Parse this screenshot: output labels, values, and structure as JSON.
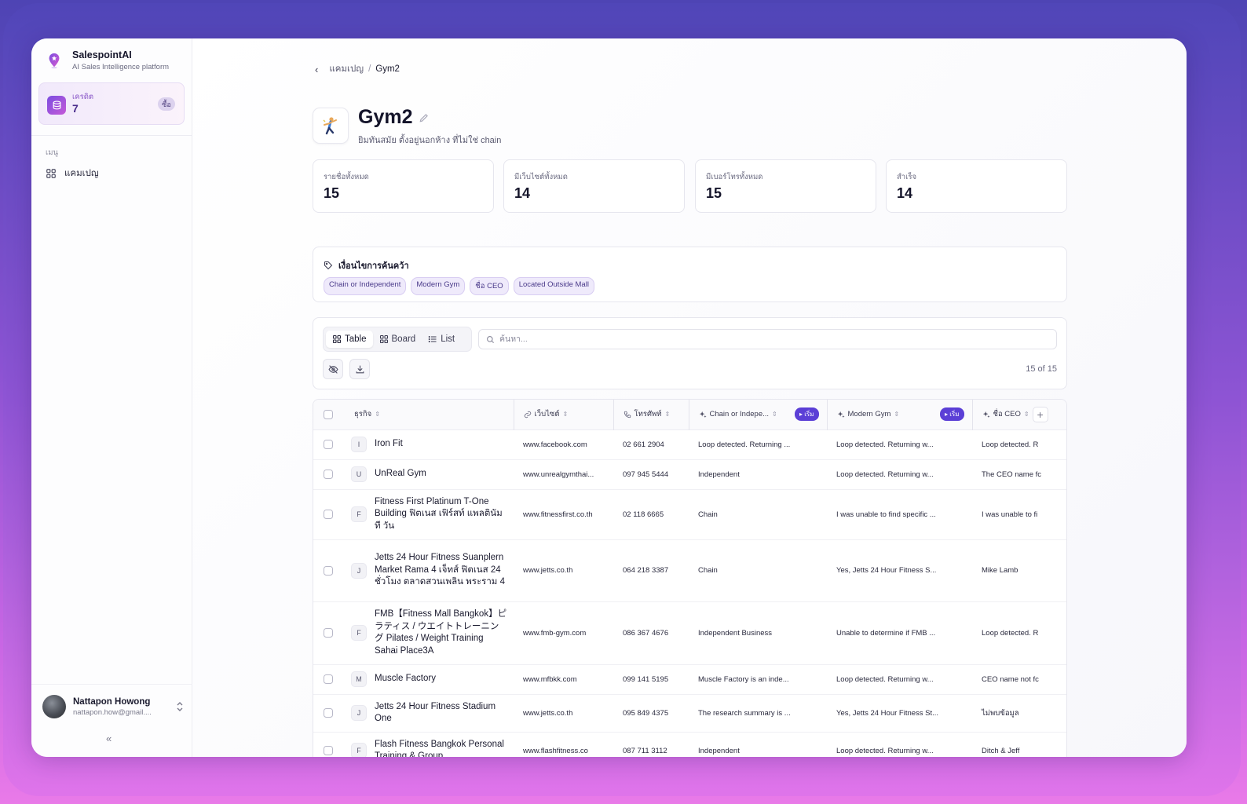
{
  "sidebar": {
    "brand_name": "SalespointAI",
    "brand_subtitle": "AI Sales Intelligence platform",
    "credit_label": "เครดิต",
    "credit_value": "7",
    "buy_label": "ซื้อ",
    "menu_label": "เมนู",
    "menu_items": [
      {
        "label": "แคมเปญ",
        "icon": "grid-icon"
      }
    ],
    "user_name": "Nattapon Howong",
    "user_email": "nattapon.how@gmail....",
    "collapse_label": "«"
  },
  "breadcrumb": {
    "parent": "แคมเปญ",
    "separator": "/",
    "current": "Gym2"
  },
  "campaign": {
    "icon": "gymnast-icon",
    "title": "Gym2",
    "description": "ยิมทันสมัย ตั้งอยู่นอกห้าง ที่ไม่ใช่ chain"
  },
  "stats": [
    {
      "label": "รายชื่อทั้งหมด",
      "value": "15"
    },
    {
      "label": "มีเว็บไซต์ทั้งหมด",
      "value": "14"
    },
    {
      "label": "มีเบอร์โทรทั้งหมด",
      "value": "15"
    },
    {
      "label": "สำเร็จ",
      "value": "14"
    }
  ],
  "criteria": {
    "title": "เงื่อนไขการค้นคว้า",
    "chips": [
      "Chain or Independent",
      "Modern Gym",
      "ชื่อ CEO",
      "Located Outside Mall"
    ]
  },
  "toolbar": {
    "views": [
      {
        "label": "Table",
        "active": true
      },
      {
        "label": "Board",
        "active": false
      },
      {
        "label": "List",
        "active": false
      }
    ],
    "search_placeholder": "ค้นหา...",
    "search_value": "",
    "count": "15 of 15"
  },
  "table": {
    "columns": [
      {
        "label": "ธุรกิจ",
        "icon": ""
      },
      {
        "label": "เว็บไซต์",
        "icon": "link-icon"
      },
      {
        "label": "โทรศัพท์",
        "icon": "phone-icon"
      },
      {
        "label": "Chain or Indepe...",
        "icon": "sparkle-icon",
        "run_label": "▸ เริ่ม"
      },
      {
        "label": "Modern Gym",
        "icon": "sparkle-icon",
        "run_label": "▸ เริ่ม"
      },
      {
        "label": "ชื่อ CEO",
        "icon": "sparkle-icon"
      }
    ],
    "rows": [
      {
        "letter": "I",
        "name": "Iron Fit",
        "website": "www.facebook.com",
        "phone": "02 661 2904",
        "chain": "Loop detected. Returning ...",
        "modern": "Loop detected. Returning w...",
        "ceo": "Loop detected. R"
      },
      {
        "letter": "U",
        "name": "UnReal Gym",
        "website": "www.unrealgymthai...",
        "phone": "097 945 5444",
        "chain": "Independent",
        "modern": "Loop detected. Returning w...",
        "ceo": "The CEO name fc"
      },
      {
        "letter": "F",
        "name": "Fitness First Platinum T-One Building ฟิตเนส เฟิร์สท์ แพลตินัม ที วัน",
        "website": "www.fitnessfirst.co.th",
        "phone": "02 118 6665",
        "chain": "Chain",
        "modern": "I was unable to find specific ...",
        "ceo": "I was unable to fi"
      },
      {
        "letter": "J",
        "name": "Jetts 24 Hour Fitness Suanplern Market Rama 4 เจ็ทส์ ฟิตเนส 24 ชั่วโมง ตลาดสวนเพลิน พระราม 4",
        "website": "www.jetts.co.th",
        "phone": "064 218 3387",
        "chain": "Chain",
        "modern": "Yes, Jetts 24 Hour Fitness S...",
        "ceo": "Mike Lamb"
      },
      {
        "letter": "F",
        "name": "FMB【Fitness Mall Bangkok】ピラティス / ウエイトトレーニング Pilates / Weight Training Sahai Place3A",
        "website": "www.fmb-gym.com",
        "phone": "086 367 4676",
        "chain": "Independent Business",
        "modern": "Unable to determine if FMB ...",
        "ceo": "Loop detected. R"
      },
      {
        "letter": "M",
        "name": "Muscle Factory",
        "website": "www.mfbkk.com",
        "phone": "099 141 5195",
        "chain": "Muscle Factory is an inde...",
        "modern": "Loop detected. Returning w...",
        "ceo": "CEO name not fc"
      },
      {
        "letter": "J",
        "name": "Jetts 24 Hour Fitness Stadium One",
        "website": "www.jetts.co.th",
        "phone": "095 849 4375",
        "chain": "The research summary is ...",
        "modern": "Yes, Jetts 24 Hour Fitness St...",
        "ceo": "ไม่พบข้อมูล"
      },
      {
        "letter": "F",
        "name": "Flash Fitness Bangkok Personal Training & Group",
        "website": "www.flashfitness.co",
        "phone": "087 711 3112",
        "chain": "Independent",
        "modern": "Loop detected. Returning w...",
        "ceo": "Ditch & Jeff"
      }
    ]
  }
}
